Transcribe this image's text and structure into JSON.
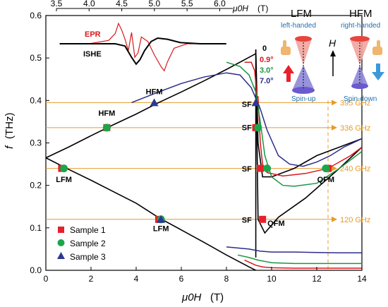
{
  "chart_data": {
    "type": "line",
    "xlabel_main": "μ0H",
    "xlabel_unit": "(T)",
    "ylabel_main": "f",
    "ylabel_unit": "(THz)",
    "xlim": [
      0,
      14
    ],
    "ylim": [
      0,
      0.6
    ],
    "xticks": [
      "0",
      "2",
      "4",
      "6",
      "8",
      "10",
      "12",
      "14"
    ],
    "yticks": [
      "0.0",
      "0.1",
      "0.2",
      "0.3",
      "0.4",
      "0.5",
      "0.6"
    ],
    "angle_labels": [
      {
        "text": "0",
        "color": "#000000"
      },
      {
        "text": "0.9°",
        "color": "#d7191c"
      },
      {
        "text": "3.0°",
        "color": "#1a9641"
      },
      {
        "text": "7.0°",
        "color": "#2c2c8c"
      }
    ],
    "series": [
      {
        "name": "0",
        "color": "#000000",
        "branches": [
          {
            "x": [
              0,
              1,
              2,
              3,
              4,
              5,
              6,
              7,
              8,
              9.3
            ],
            "y": [
              0.265,
              0.29,
              0.317,
              0.343,
              0.368,
              0.395,
              0.42,
              0.446,
              0.473,
              0.51
            ]
          },
          {
            "x": [
              0,
              1,
              2,
              3,
              4,
              5,
              6,
              7,
              8,
              9,
              9.3
            ],
            "y": [
              0.265,
              0.238,
              0.212,
              0.185,
              0.158,
              0.124,
              0.095,
              0.066,
              0.036,
              0.008,
              0.0
            ]
          },
          {
            "x": [
              9.3,
              9.3,
              9.4,
              9.6,
              10,
              11,
              12,
              13,
              14
            ],
            "y": [
              0.03,
              0.52,
              0.3,
              0.22,
              0.22,
              0.24,
              0.27,
              0.29,
              0.31
            ]
          },
          {
            "x": [
              9.3,
              9.4,
              9.7,
              10.3,
              11.5,
              13,
              14
            ],
            "y": [
              0.52,
              0.12,
              0.088,
              0.125,
              0.17,
              0.24,
              0.29
            ]
          }
        ]
      },
      {
        "name": "0.9°",
        "color": "#d7191c",
        "branches": [
          {
            "x": [
              8.8,
              9.1,
              9.25,
              9.35
            ],
            "y": [
              0.49,
              0.49,
              0.47,
              0.41
            ]
          },
          {
            "x": [
              8.8,
              9.3,
              9.6,
              10,
              11,
              12,
              13,
              14
            ],
            "y": [
              0.024,
              0.012,
              0.008,
              0.006,
              0.005,
              0.005,
              0.005,
              0.005
            ]
          },
          {
            "x": [
              9.4,
              9.5,
              9.6,
              9.8,
              10.5,
              11.5,
              12.5,
              13.5,
              14
            ],
            "y": [
              0.41,
              0.3,
              0.25,
              0.23,
              0.222,
              0.228,
              0.24,
              0.27,
              0.29
            ]
          }
        ]
      },
      {
        "name": "3.0°",
        "color": "#1a9641",
        "branches": [
          {
            "x": [
              8.0,
              8.6,
              9.0,
              9.3,
              9.5
            ],
            "y": [
              0.49,
              0.48,
              0.46,
              0.42,
              0.35
            ]
          },
          {
            "x": [
              8.5,
              9.0,
              9.4,
              10,
              11,
              12,
              13,
              14
            ],
            "y": [
              0.036,
              0.03,
              0.024,
              0.018,
              0.016,
              0.016,
              0.016,
              0.016
            ]
          },
          {
            "x": [
              9.5,
              9.7,
              10,
              10.5,
              11,
              12,
              13,
              14
            ],
            "y": [
              0.35,
              0.27,
              0.22,
              0.2,
              0.198,
              0.205,
              0.24,
              0.28
            ]
          }
        ]
      },
      {
        "name": "7.0°",
        "color": "#2c2c8c",
        "branches": [
          {
            "x": [
              3.8,
              5,
              6,
              7,
              8,
              8.6,
              9.1,
              9.5,
              9.8
            ],
            "y": [
              0.395,
              0.42,
              0.44,
              0.455,
              0.465,
              0.46,
              0.43,
              0.38,
              0.33
            ]
          },
          {
            "x": [
              8.0,
              9.0,
              9.5,
              10,
              11,
              12,
              13,
              14
            ],
            "y": [
              0.055,
              0.05,
              0.045,
              0.043,
              0.043,
              0.042,
              0.041,
              0.041
            ]
          },
          {
            "x": [
              9.8,
              10.3,
              10.8,
              11.4,
              12,
              12.6,
              13.2,
              14
            ],
            "y": [
              0.33,
              0.27,
              0.25,
              0.245,
              0.255,
              0.27,
              0.29,
              0.31
            ]
          }
        ]
      }
    ],
    "markers": [
      {
        "series": "Sample 1",
        "x": 0.7,
        "y": 0.24
      },
      {
        "series": "Sample 1",
        "x": 2.7,
        "y": 0.336
      },
      {
        "series": "Sample 1",
        "x": 5.0,
        "y": 0.12
      },
      {
        "series": "Sample 1",
        "x": 9.3,
        "y": 0.336
      },
      {
        "series": "Sample 1",
        "x": 9.5,
        "y": 0.24
      },
      {
        "series": "Sample 1",
        "x": 9.6,
        "y": 0.12
      },
      {
        "series": "Sample 1",
        "x": 12.5,
        "y": 0.24
      },
      {
        "series": "Sample 2",
        "x": 0.8,
        "y": 0.24
      },
      {
        "series": "Sample 2",
        "x": 2.7,
        "y": 0.336
      },
      {
        "series": "Sample 2",
        "x": 5.1,
        "y": 0.12
      },
      {
        "series": "Sample 2",
        "x": 9.4,
        "y": 0.336
      },
      {
        "series": "Sample 2",
        "x": 9.8,
        "y": 0.24
      },
      {
        "series": "Sample 2",
        "x": 12.4,
        "y": 0.24
      },
      {
        "series": "Sample 3",
        "x": 4.8,
        "y": 0.395
      },
      {
        "series": "Sample 3",
        "x": 5.1,
        "y": 0.12
      },
      {
        "series": "Sample 3",
        "x": 9.3,
        "y": 0.395
      }
    ],
    "legend": [
      {
        "name": "Sample 1",
        "shape": "square",
        "color": "#e8202a"
      },
      {
        "name": "Sample 2",
        "shape": "circle",
        "color": "#1aa64b"
      },
      {
        "name": "Sample 3",
        "shape": "triangle",
        "color": "#2b3990"
      }
    ],
    "hlines": [
      {
        "y": 0.395,
        "label": "395 GHz"
      },
      {
        "y": 0.336,
        "label": "336 GHz"
      },
      {
        "y": 0.24,
        "label": "240 GHz"
      },
      {
        "y": 0.12,
        "label": "120 GHz"
      }
    ],
    "vline_x": 12.5,
    "accent_color": "#e69b2a",
    "annotations": [
      {
        "text": "LFM",
        "x": 0.8,
        "y": 0.208
      },
      {
        "text": "HFM",
        "x": 2.7,
        "y": 0.364
      },
      {
        "text": "HFM",
        "x": 4.8,
        "y": 0.415
      },
      {
        "text": "LFM",
        "x": 5.1,
        "y": 0.092
      },
      {
        "text": "SF",
        "x": 8.9,
        "y": 0.385
      },
      {
        "text": "SF",
        "x": 8.9,
        "y": 0.33
      },
      {
        "text": "SF",
        "x": 8.9,
        "y": 0.233
      },
      {
        "text": "SF",
        "x": 8.9,
        "y": 0.112
      },
      {
        "text": "QFM",
        "x": 10.2,
        "y": 0.105
      },
      {
        "text": "QFM",
        "x": 12.4,
        "y": 0.208
      }
    ]
  },
  "inset": {
    "xlabel_main": "μ0H",
    "xlabel_unit": "(T)",
    "xlim": [
      3.5,
      6.2
    ],
    "xticks": [
      "3.5",
      "4.0",
      "4.5",
      "5.0",
      "5.5",
      "6.0"
    ],
    "epr_label": "EPR",
    "ishe_label": "ISHE",
    "epr_color": "#d7191c",
    "ishe_color": "#000000",
    "epr_x": [
      3.55,
      4.0,
      4.3,
      4.4,
      4.45,
      4.5,
      4.55,
      4.6,
      4.65,
      4.7,
      4.75,
      4.8,
      4.9,
      5.0,
      5.1,
      5.15,
      5.2,
      5.3,
      5.5,
      5.8,
      6.1
    ],
    "epr_y": [
      0.0,
      0.0,
      0.15,
      0.45,
      0.9,
      0.6,
      0.2,
      -0.3,
      0.5,
      -0.6,
      -0.4,
      0.3,
      0.1,
      -0.5,
      -1.0,
      -1.2,
      -0.8,
      -0.2,
      0.0,
      0.0,
      0.0
    ],
    "ishe_x": [
      3.55,
      4.0,
      4.4,
      4.55,
      4.65,
      4.72,
      4.78,
      4.85,
      4.95,
      5.05,
      5.2,
      5.4,
      5.7,
      6.1
    ],
    "ishe_y": [
      0.0,
      0.0,
      0.0,
      -0.1,
      -0.6,
      -0.9,
      -0.7,
      -0.3,
      0.1,
      0.25,
      0.2,
      0.05,
      0.0,
      0.0
    ]
  },
  "schematic": {
    "lfm_title": "LFM",
    "lfm_sub": "left-handed",
    "lfm_spin": "Spin-up",
    "hfm_title": "HFM",
    "hfm_sub": "right-handed",
    "hfm_spin": "Spin-down",
    "field_label": "H",
    "sub_color": "#1f6fb2",
    "cone_red": "#e8453c",
    "cone_blue": "#6a5acd",
    "arrow_red": "#e8202a",
    "arrow_blue": "#3a9ad9"
  }
}
